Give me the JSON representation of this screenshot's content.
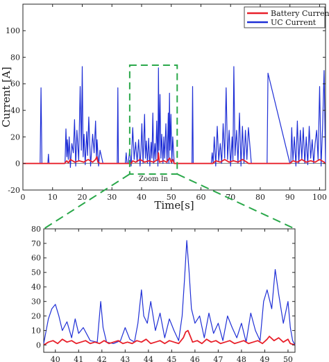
{
  "colors": {
    "battery": "#e8202a",
    "uc": "#1f2fd6",
    "zoom_box": "#2aa84a",
    "axis": "#222222"
  },
  "chart_data": [
    {
      "type": "line",
      "panel": "overview",
      "title": "",
      "xlabel": "Time[s]",
      "ylabel": "Current [A]",
      "xlim": [
        0,
        102
      ],
      "ylim": [
        -20,
        120
      ],
      "xticks": [
        "0",
        "10",
        "20",
        "30",
        "40",
        "50",
        "60",
        "70",
        "80",
        "90",
        "100"
      ],
      "yticks": [
        "-20",
        "0",
        "20",
        "40",
        "60",
        "80",
        "100"
      ],
      "legend": {
        "position": "top-right",
        "entries": [
          "Battery Current",
          "UC Current"
        ]
      },
      "annotation": "Zoom In",
      "zoom_window": {
        "x": [
          36,
          52
        ],
        "y": [
          -8,
          74
        ]
      },
      "series": [
        {
          "name": "Battery Current",
          "color": "#e8202a",
          "x": [
            0,
            14,
            14.8,
            15.3,
            16,
            17.5,
            19,
            20.5,
            22,
            23.5,
            24.5,
            24.9,
            25.3,
            26,
            36.5,
            37,
            38,
            39.5,
            41,
            42.5,
            44,
            45.5,
            45.7,
            46,
            47.5,
            48.5,
            49,
            49.5,
            50,
            50.5,
            51,
            64,
            65,
            66.5,
            68,
            69.5,
            71,
            72.5,
            74,
            75.5,
            76,
            90,
            91,
            92.5,
            94,
            95.5,
            97,
            98.5,
            100,
            101.5,
            102
          ],
          "values": [
            0,
            0,
            2,
            0.5,
            3,
            1,
            2,
            1,
            3,
            1,
            3,
            5,
            1,
            0,
            0,
            2,
            1,
            3,
            1,
            2,
            1,
            3,
            8,
            1,
            2,
            1,
            3,
            4,
            1,
            3,
            0,
            0,
            2,
            1,
            3,
            1,
            2,
            1,
            3,
            1,
            0,
            0,
            2,
            1,
            3,
            1,
            2,
            1,
            3,
            1,
            0
          ]
        },
        {
          "name": "UC Current",
          "color": "#1f2fd6",
          "x": [
            0,
            5.8,
            6.1,
            6.4,
            8.4,
            8.6,
            8.8,
            14.2,
            14.5,
            14.8,
            15,
            15.3,
            15.6,
            16,
            16.5,
            17,
            17.4,
            17.8,
            18.2,
            18.8,
            19.3,
            19.7,
            20,
            20.3,
            20.6,
            21,
            21.5,
            21.8,
            22.2,
            22.8,
            23.5,
            24,
            24.5,
            24.8,
            25,
            25.5,
            26,
            27,
            31.8,
            32,
            32.2,
            34.5,
            34.8,
            35.1,
            35.5,
            36,
            36.5,
            37,
            37.5,
            38,
            38.5,
            39,
            39.5,
            39.8,
            40.1,
            40.5,
            41,
            41.3,
            41.6,
            42,
            42.4,
            42.8,
            43.2,
            43.5,
            43.8,
            44.1,
            44.5,
            44.8,
            45.1,
            45.5,
            45.7,
            45.9,
            46.2,
            46.5,
            46.8,
            47.2,
            47.5,
            47.8,
            48.2,
            48.6,
            49,
            49.2,
            49.4,
            49.6,
            49.9,
            50.2,
            50.5,
            51,
            51.5,
            57,
            57.2,
            57.4,
            63.5,
            63.8,
            64.1,
            64.5,
            65,
            65.5,
            66,
            66.5,
            67,
            67.5,
            68,
            68.5,
            69,
            69.5,
            70,
            70.5,
            70.8,
            71.1,
            71.5,
            72,
            72.5,
            73,
            73.5,
            74,
            74.5,
            75,
            75.5,
            76,
            77,
            82,
            82.3,
            82.6,
            90,
            90.3,
            90.6,
            91,
            91.5,
            92,
            92.5,
            93,
            93.5,
            94,
            94.5,
            95,
            95.5,
            96,
            96.5,
            97,
            97.5,
            98,
            98.5,
            99,
            99.5,
            100,
            100.5,
            101,
            101.5,
            102
          ],
          "values": [
            0,
            0,
            57,
            0,
            0,
            7,
            0,
            0,
            26,
            5,
            18,
            3,
            20,
            -3,
            15,
            8,
            33,
            -2,
            25,
            2,
            58,
            10,
            73,
            5,
            22,
            -1,
            24,
            6,
            35,
            -2,
            22,
            8,
            32,
            4,
            18,
            -2,
            10,
            0,
            0,
            57,
            0,
            0,
            8,
            0,
            0,
            10,
            -2,
            27,
            3,
            16,
            1,
            18,
            -2,
            10,
            30,
            0,
            37,
            4,
            17,
            0,
            19,
            -2,
            16,
            4,
            38,
            0,
            15,
            3,
            32,
            -2,
            72,
            10,
            52,
            4,
            22,
            0,
            20,
            4,
            30,
            0,
            38,
            0,
            53,
            10,
            37,
            0,
            20,
            0,
            0,
            0,
            58,
            0,
            0,
            8,
            0,
            20,
            -2,
            28,
            2,
            15,
            0,
            30,
            4,
            57,
            3,
            25,
            -2,
            20,
            2,
            73,
            6,
            25,
            0,
            38,
            -2,
            28,
            0,
            25,
            3,
            27,
            0,
            0,
            0,
            68,
            0,
            0,
            27,
            2,
            20,
            -2,
            32,
            0,
            25,
            3,
            27,
            0,
            20,
            -1,
            28,
            4,
            18,
            0,
            15,
            25,
            3,
            58,
            -2,
            26,
            70,
            0
          ]
        }
      ]
    },
    {
      "type": "line",
      "panel": "zoom",
      "title": "",
      "xlabel": "",
      "ylabel": "",
      "xlim": [
        39.5,
        50.3
      ],
      "ylim": [
        -5,
        80
      ],
      "xticks": [
        "40",
        "41",
        "42",
        "43",
        "44",
        "45",
        "46",
        "47",
        "48",
        "49",
        "50"
      ],
      "yticks": [
        "0",
        "10",
        "20",
        "30",
        "40",
        "50",
        "60",
        "70",
        "80"
      ],
      "series": [
        {
          "name": "Battery Current",
          "color": "#e8202a",
          "x": [
            39.5,
            39.7,
            39.9,
            40.1,
            40.3,
            40.5,
            40.7,
            40.9,
            41.1,
            41.3,
            41.5,
            41.7,
            41.9,
            42.1,
            42.3,
            42.5,
            42.7,
            42.9,
            43.1,
            43.3,
            43.5,
            43.7,
            43.9,
            44.1,
            44.3,
            44.5,
            44.7,
            44.9,
            45.1,
            45.3,
            45.5,
            45.6,
            45.7,
            45.8,
            45.9,
            46.1,
            46.3,
            46.5,
            46.7,
            46.9,
            47.1,
            47.3,
            47.5,
            47.7,
            47.9,
            48.1,
            48.3,
            48.5,
            48.7,
            48.9,
            49.1,
            49.2,
            49.4,
            49.6,
            49.8,
            50,
            50.1,
            50.3
          ],
          "values": [
            0,
            2,
            3,
            1,
            4,
            2,
            3,
            1,
            2,
            3,
            1,
            2,
            1,
            3,
            1,
            2,
            3,
            1,
            2,
            1,
            3,
            2,
            4,
            1,
            2,
            3,
            1,
            3,
            2,
            1,
            5,
            9,
            10,
            6,
            2,
            3,
            1,
            4,
            2,
            3,
            1,
            2,
            3,
            1,
            2,
            3,
            1,
            2,
            3,
            1,
            4,
            6,
            3,
            5,
            2,
            4,
            1,
            0
          ]
        },
        {
          "name": "UC Current",
          "color": "#1f2fd6",
          "x": [
            39.5,
            39.7,
            39.85,
            40,
            40.15,
            40.3,
            40.5,
            40.7,
            40.85,
            41,
            41.2,
            41.5,
            41.8,
            41.95,
            42.05,
            42.2,
            42.5,
            42.8,
            43,
            43.2,
            43.4,
            43.55,
            43.7,
            43.8,
            43.95,
            44.1,
            44.3,
            44.5,
            44.7,
            44.9,
            45.1,
            45.3,
            45.45,
            45.55,
            45.65,
            45.75,
            45.85,
            46,
            46.2,
            46.4,
            46.6,
            46.8,
            47,
            47.2,
            47.4,
            47.6,
            47.8,
            48,
            48.2,
            48.4,
            48.6,
            48.8,
            48.95,
            49.1,
            49.3,
            49.45,
            49.6,
            49.8,
            50,
            50.1,
            50.2,
            50.3
          ],
          "values": [
            1,
            18,
            25,
            28,
            20,
            10,
            16,
            5,
            18,
            8,
            12,
            3,
            2,
            30,
            12,
            2,
            1,
            3,
            12,
            4,
            2,
            15,
            38,
            20,
            15,
            30,
            10,
            22,
            5,
            18,
            10,
            3,
            20,
            45,
            72,
            50,
            25,
            15,
            20,
            5,
            22,
            8,
            15,
            3,
            20,
            12,
            5,
            15,
            2,
            22,
            10,
            3,
            30,
            38,
            25,
            52,
            35,
            15,
            30,
            12,
            3,
            0
          ]
        }
      ]
    }
  ]
}
